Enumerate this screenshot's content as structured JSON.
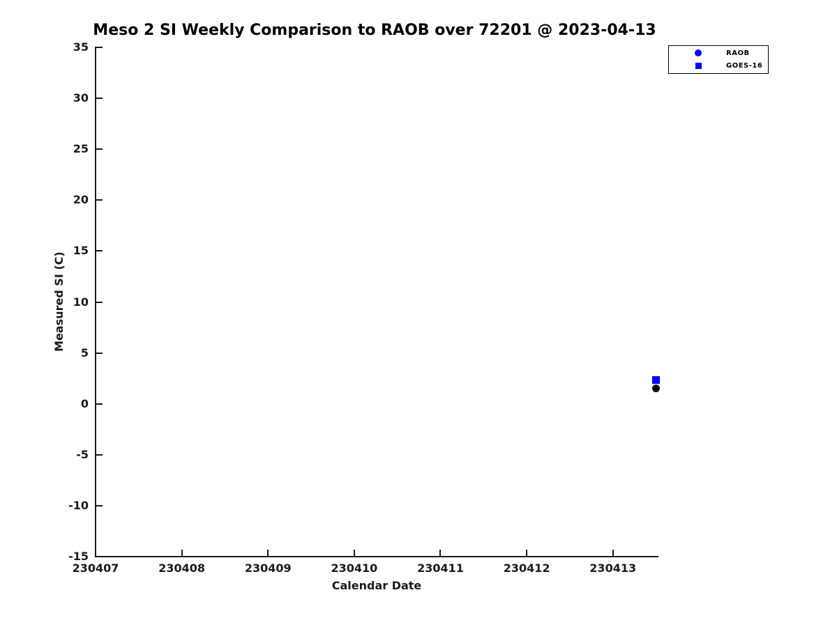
{
  "title": "Meso 2 SI Weekly Comparison to RAOB over 72201 @ 2023-04-13",
  "colors": {
    "marker_blue": "#0000FF",
    "marker_black": "#000000",
    "axis": "#1a1a1a",
    "background": "#FFFFFF"
  },
  "chart_data": {
    "type": "scatter",
    "title": "Meso 2 SI Weekly Comparison to RAOB over 72201 @ 2023-04-13",
    "xlabel": "Calendar Date",
    "ylabel": "Measured SI (C)",
    "xlim": [
      230407,
      230413.52
    ],
    "ylim": [
      -15,
      35
    ],
    "x_ticks": [
      230407,
      230408,
      230409,
      230410,
      230411,
      230412,
      230413
    ],
    "y_ticks": [
      -15,
      -10,
      -5,
      0,
      5,
      10,
      15,
      20,
      25,
      30,
      35
    ],
    "grid": false,
    "legend": {
      "position": "top-right",
      "entries": [
        "RAOB",
        "GOES-16"
      ]
    },
    "series": [
      {
        "name": "RAOB",
        "marker": "circle",
        "legend_color": "#0000FF",
        "color": "#000000",
        "points": [
          {
            "x": 230413.5,
            "y": 1.55
          }
        ]
      },
      {
        "name": "GOES-16",
        "marker": "square",
        "legend_color": "#0000FF",
        "color": "#0000FF",
        "points": [
          {
            "x": 230413.5,
            "y": 2.35
          }
        ]
      }
    ]
  }
}
